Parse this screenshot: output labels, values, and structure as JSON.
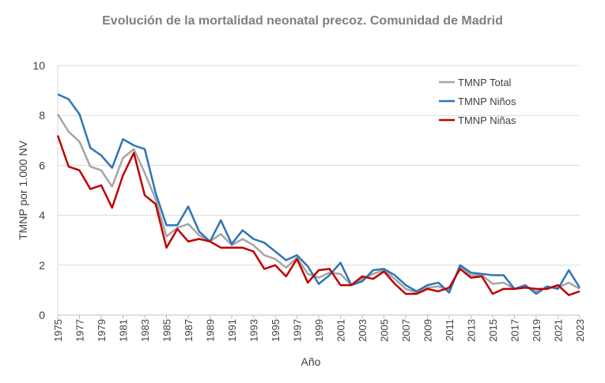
{
  "chart_data": {
    "type": "line",
    "title": "Evolución de la mortalidad neonatal precoz. Comunidad de Madrid",
    "xlabel": "Año",
    "ylabel": "TMNP por 1.000 NV",
    "ylim": [
      0,
      10
    ],
    "yticks": [
      "0",
      "2",
      "4",
      "6",
      "8",
      "10"
    ],
    "grid": true,
    "legend": "top-right",
    "x": [
      1975,
      1976,
      1977,
      1978,
      1979,
      1980,
      1981,
      1982,
      1983,
      1984,
      1985,
      1986,
      1987,
      1988,
      1989,
      1990,
      1991,
      1992,
      1993,
      1994,
      1995,
      1996,
      1997,
      1998,
      1999,
      2000,
      2001,
      2002,
      2003,
      2004,
      2005,
      2006,
      2007,
      2008,
      2009,
      2010,
      2011,
      2012,
      2013,
      2014,
      2015,
      2016,
      2017,
      2018,
      2019,
      2020,
      2021,
      2022,
      2023
    ],
    "xticks": [
      "1975",
      "1977",
      "1979",
      "1981",
      "1983",
      "1985",
      "1987",
      "1989",
      "1991",
      "1993",
      "1995",
      "1997",
      "1999",
      "2001",
      "2003",
      "2005",
      "2007",
      "2009",
      "2011",
      "2013",
      "2015",
      "2017",
      "2019",
      "2021",
      "2023"
    ],
    "series": [
      {
        "name": "TMNP Total",
        "color": "#a5a5a5",
        "values": [
          8.05,
          7.35,
          6.95,
          5.95,
          5.8,
          5.15,
          6.3,
          6.65,
          5.7,
          4.65,
          3.15,
          3.5,
          3.65,
          3.2,
          2.95,
          3.25,
          2.8,
          3.05,
          2.8,
          2.4,
          2.25,
          1.9,
          2.3,
          1.65,
          1.5,
          1.7,
          1.65,
          1.2,
          1.45,
          1.65,
          1.8,
          1.45,
          1.05,
          0.9,
          1.1,
          1.15,
          1.0,
          1.95,
          1.6,
          1.6,
          1.25,
          1.3,
          1.05,
          1.15,
          0.95,
          1.1,
          1.1,
          1.3,
          1.05
        ]
      },
      {
        "name": "TMNP Niños",
        "color": "#2e75b6",
        "values": [
          8.85,
          8.65,
          8.05,
          6.7,
          6.4,
          5.9,
          7.05,
          6.8,
          6.65,
          4.9,
          3.6,
          3.6,
          4.35,
          3.35,
          2.95,
          3.8,
          2.85,
          3.4,
          3.05,
          2.9,
          2.55,
          2.2,
          2.4,
          1.95,
          1.25,
          1.6,
          2.1,
          1.2,
          1.35,
          1.8,
          1.85,
          1.6,
          1.2,
          0.95,
          1.2,
          1.3,
          0.9,
          2.0,
          1.7,
          1.65,
          1.6,
          1.6,
          1.05,
          1.2,
          0.85,
          1.15,
          1.05,
          1.8,
          1.1
        ]
      },
      {
        "name": "TMNP Niñas",
        "color": "#c00000",
        "values": [
          7.2,
          5.95,
          5.8,
          5.05,
          5.2,
          4.3,
          5.6,
          6.5,
          4.8,
          4.45,
          2.7,
          3.45,
          2.95,
          3.05,
          2.95,
          2.7,
          2.7,
          2.7,
          2.55,
          1.85,
          2.0,
          1.55,
          2.25,
          1.3,
          1.8,
          1.85,
          1.2,
          1.2,
          1.55,
          1.45,
          1.75,
          1.25,
          0.85,
          0.85,
          1.05,
          0.95,
          1.1,
          1.85,
          1.5,
          1.55,
          0.85,
          1.05,
          1.05,
          1.1,
          1.05,
          1.05,
          1.2,
          0.8,
          0.95
        ]
      }
    ]
  }
}
